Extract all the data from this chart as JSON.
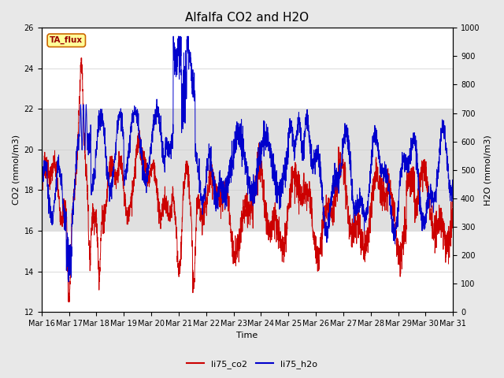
{
  "title": "Alfalfa CO2 and H2O",
  "xlabel": "Time",
  "ylabel_left": "CO2 (mmol/m3)",
  "ylabel_right": "H2O (mmol/m3)",
  "ylim_left": [
    12,
    26
  ],
  "ylim_right": [
    0,
    1000
  ],
  "yticks_left": [
    12,
    14,
    16,
    18,
    20,
    22,
    24,
    26
  ],
  "yticks_right": [
    0,
    100,
    200,
    300,
    400,
    500,
    600,
    700,
    800,
    900,
    1000
  ],
  "color_co2": "#cc0000",
  "color_h2o": "#0000cc",
  "legend_label_co2": "li75_co2",
  "legend_label_h2o": "li75_h2o",
  "text_box_label": "TA_flux",
  "text_box_bg": "#ffff99",
  "text_box_edge": "#cc6600",
  "text_box_text": "#990000",
  "background_color": "#e8e8e8",
  "plot_bg": "#ffffff",
  "title_fontsize": 11,
  "axis_fontsize": 8,
  "tick_fontsize": 7,
  "gray_band_low": 16,
  "gray_band_high": 22,
  "gray_band_color": "#d4d4d4",
  "x_tick_labels": [
    "Mar 16",
    "Mar 17",
    "Mar 18",
    "Mar 19",
    "Mar 20",
    "Mar 21",
    "Mar 22",
    "Mar 23",
    "Mar 24",
    "Mar 25",
    "Mar 26",
    "Mar 27",
    "Mar 28",
    "Mar 29",
    "Mar 30",
    "Mar 31"
  ]
}
